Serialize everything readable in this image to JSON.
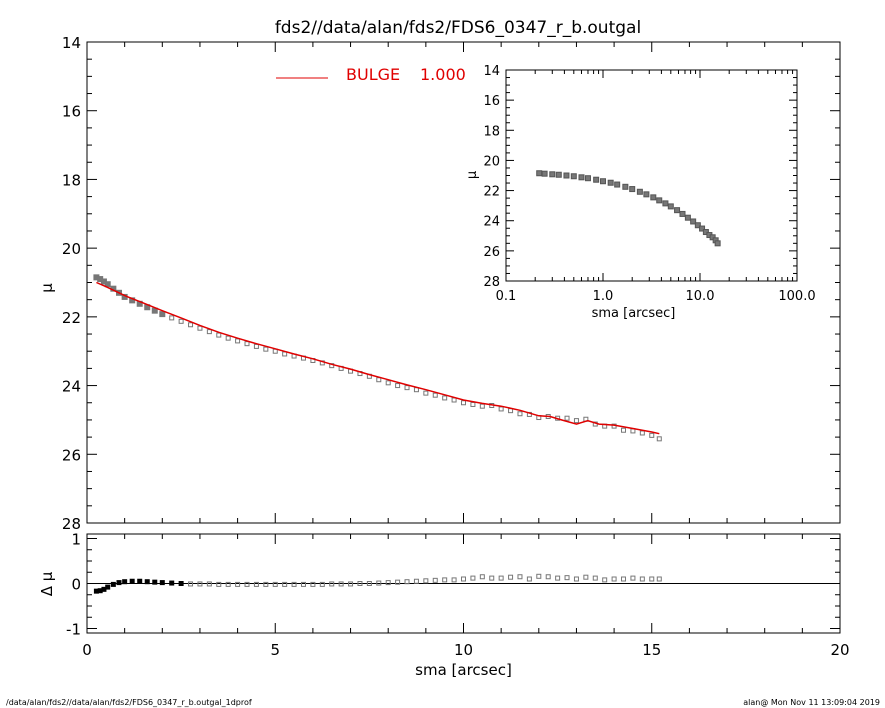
{
  "title": "fds2//data/alan/fds2/FDS6_0347_r_b.outgal",
  "footer_left": "/data/alan/fds2//data/alan/fds2/FDS6_0347_r_b.outgal_1dprof",
  "footer_right": "alan@  Mon Nov 11 13:09:04 2019",
  "colors": {
    "model": "#e00000",
    "data": "#777777",
    "residual_dense": "#000000",
    "frame": "#000000"
  },
  "legend": {
    "label": "BULGE",
    "value": "1.000",
    "color": "#e00000",
    "placement": "top-left"
  },
  "chart_data": [
    {
      "id": "main",
      "type": "scatter",
      "xlabel": "",
      "ylabel": "μ",
      "xlim": [
        0,
        20
      ],
      "ylim": [
        28,
        14
      ],
      "yticks": [
        14,
        16,
        18,
        20,
        22,
        24,
        26,
        28
      ],
      "series": [
        {
          "name": "BULGE 1.000",
          "kind": "line",
          "x": [
            0.25,
            0.5,
            1,
            1.5,
            2,
            2.5,
            3,
            3.5,
            4,
            4.5,
            5,
            5.5,
            6,
            6.5,
            7,
            7.5,
            8,
            8.5,
            9,
            9.5,
            10,
            10.5,
            11,
            11.5,
            12,
            12.3,
            12.6,
            13.0,
            13.3,
            13.6,
            14,
            14.5,
            15.0,
            15.2
          ],
          "y": [
            21.0,
            21.12,
            21.38,
            21.6,
            21.82,
            22.03,
            22.25,
            22.45,
            22.62,
            22.78,
            22.93,
            23.08,
            23.22,
            23.38,
            23.52,
            23.68,
            23.83,
            23.98,
            24.12,
            24.27,
            24.42,
            24.52,
            24.6,
            24.72,
            24.88,
            24.9,
            25.0,
            25.12,
            25.02,
            25.12,
            25.15,
            25.25,
            25.35,
            25.4
          ]
        },
        {
          "name": "data",
          "kind": "points",
          "x": [
            0.25,
            0.35,
            0.45,
            0.55,
            0.7,
            0.85,
            1.0,
            1.2,
            1.4,
            1.6,
            1.8,
            2.0,
            2.25,
            2.5,
            2.75,
            3.0,
            3.25,
            3.5,
            3.75,
            4.0,
            4.25,
            4.5,
            4.75,
            5.0,
            5.25,
            5.5,
            5.75,
            6.0,
            6.25,
            6.5,
            6.75,
            7.0,
            7.25,
            7.5,
            7.75,
            8.0,
            8.25,
            8.5,
            8.75,
            9.0,
            9.25,
            9.5,
            9.75,
            10.0,
            10.25,
            10.5,
            10.75,
            11.0,
            11.25,
            11.5,
            11.75,
            12.0,
            12.25,
            12.5,
            12.75,
            13.0,
            13.25,
            13.5,
            13.75,
            14.0,
            14.25,
            14.5,
            14.75,
            15.0,
            15.2
          ],
          "y": [
            20.85,
            20.9,
            20.97,
            21.05,
            21.18,
            21.3,
            21.42,
            21.52,
            21.62,
            21.72,
            21.82,
            21.92,
            22.03,
            22.13,
            22.23,
            22.33,
            22.43,
            22.53,
            22.62,
            22.7,
            22.78,
            22.86,
            22.94,
            23.0,
            23.08,
            23.14,
            23.2,
            23.27,
            23.34,
            23.42,
            23.5,
            23.58,
            23.65,
            23.73,
            23.83,
            23.92,
            24.0,
            24.06,
            24.12,
            24.22,
            24.28,
            24.36,
            24.42,
            24.5,
            24.55,
            24.6,
            24.58,
            24.68,
            24.73,
            24.82,
            24.84,
            24.93,
            24.9,
            24.95,
            24.95,
            25.02,
            24.98,
            25.12,
            25.18,
            25.18,
            25.3,
            25.32,
            25.38,
            25.45,
            25.55
          ]
        }
      ]
    },
    {
      "id": "residual",
      "type": "scatter",
      "xlabel": "sma [arcsec]",
      "ylabel": "Δ μ",
      "xlim": [
        0,
        20
      ],
      "ylim": [
        -1.1,
        1.1
      ],
      "xticks": [
        0,
        5,
        10,
        15,
        20
      ],
      "yticks": [
        -1,
        0,
        1
      ],
      "series": [
        {
          "name": "residual",
          "kind": "points",
          "x": [
            0.25,
            0.35,
            0.45,
            0.55,
            0.7,
            0.85,
            1.0,
            1.2,
            1.4,
            1.6,
            1.8,
            2.0,
            2.25,
            2.5,
            2.75,
            3.0,
            3.25,
            3.5,
            3.75,
            4.0,
            4.25,
            4.5,
            4.75,
            5.0,
            5.25,
            5.5,
            5.75,
            6.0,
            6.25,
            6.5,
            6.75,
            7.0,
            7.25,
            7.5,
            7.75,
            8.0,
            8.25,
            8.5,
            8.75,
            9.0,
            9.25,
            9.5,
            9.75,
            10.0,
            10.25,
            10.5,
            10.75,
            11.0,
            11.25,
            11.5,
            11.75,
            12.0,
            12.25,
            12.5,
            12.75,
            13.0,
            13.25,
            13.5,
            13.75,
            14.0,
            14.25,
            14.5,
            14.75,
            15.0,
            15.2
          ],
          "y": [
            -0.17,
            -0.16,
            -0.13,
            -0.08,
            -0.02,
            0.02,
            0.04,
            0.05,
            0.05,
            0.04,
            0.03,
            0.02,
            0.01,
            0.0,
            -0.01,
            -0.01,
            -0.01,
            -0.02,
            -0.02,
            -0.02,
            -0.02,
            -0.02,
            -0.02,
            -0.02,
            -0.02,
            -0.02,
            -0.02,
            -0.02,
            -0.02,
            -0.01,
            -0.01,
            -0.01,
            0.0,
            0.0,
            0.01,
            0.02,
            0.03,
            0.04,
            0.05,
            0.06,
            0.07,
            0.08,
            0.08,
            0.1,
            0.12,
            0.15,
            0.12,
            0.12,
            0.14,
            0.15,
            0.1,
            0.16,
            0.15,
            0.12,
            0.13,
            0.1,
            0.14,
            0.12,
            0.08,
            0.1,
            0.1,
            0.12,
            0.1,
            0.1,
            0.1
          ]
        }
      ]
    },
    {
      "id": "inset",
      "type": "scatter",
      "xlabel": "sma [arcsec]",
      "ylabel": "μ",
      "xscale": "log",
      "xlim": [
        0.1,
        100
      ],
      "ylim": [
        28,
        14
      ],
      "xticks": [
        "0.1",
        "1.0",
        "10.0",
        "100.0"
      ],
      "yticks": [
        14,
        16,
        18,
        20,
        22,
        24,
        26,
        28
      ],
      "series": [
        {
          "name": "data",
          "kind": "points",
          "x": [
            0.22,
            0.25,
            0.3,
            0.35,
            0.42,
            0.5,
            0.6,
            0.7,
            0.85,
            1.0,
            1.2,
            1.4,
            1.7,
            2.0,
            2.4,
            2.8,
            3.3,
            3.8,
            4.4,
            5.0,
            5.8,
            6.6,
            7.5,
            8.5,
            9.5,
            10.5,
            11.5,
            12.5,
            13.5,
            14.5,
            15.2
          ],
          "y": [
            20.85,
            20.88,
            20.92,
            20.95,
            21.0,
            21.05,
            21.12,
            21.18,
            21.28,
            21.38,
            21.48,
            21.6,
            21.75,
            21.9,
            22.08,
            22.25,
            22.45,
            22.65,
            22.85,
            23.05,
            23.3,
            23.55,
            23.8,
            24.05,
            24.3,
            24.52,
            24.75,
            24.95,
            25.1,
            25.3,
            25.5
          ]
        }
      ]
    }
  ]
}
